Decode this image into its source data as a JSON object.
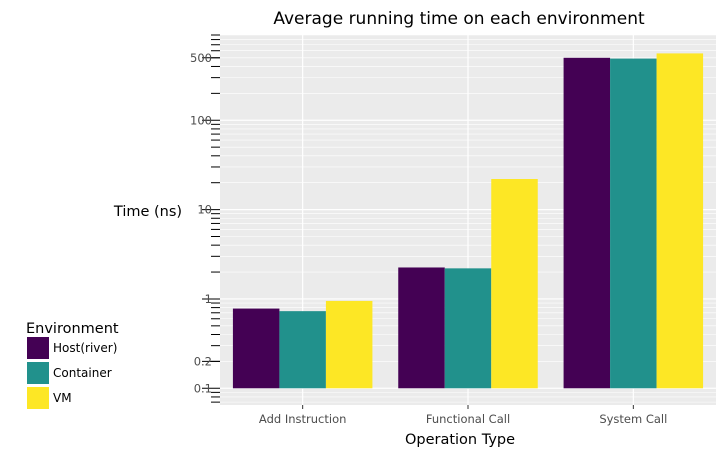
{
  "chart_data": {
    "type": "bar",
    "title": "Average running time on each environment",
    "xlabel": "Operation Type",
    "ylabel": "Time (ns)",
    "y_scale": "log",
    "ylim": [
      0.065,
      900
    ],
    "categories": [
      "Add Instruction",
      "Functional Call",
      "System Call"
    ],
    "series": [
      {
        "name": "Host(river)",
        "color": "#440154",
        "values": [
          0.78,
          2.25,
          500
        ]
      },
      {
        "name": "Container",
        "color": "#21918c",
        "values": [
          0.73,
          2.2,
          490
        ]
      },
      {
        "name": "VM",
        "color": "#fde725",
        "values": [
          0.95,
          22,
          560
        ]
      }
    ],
    "bar_base": 0.1,
    "y_tick_labels": [
      {
        "value": 0.1,
        "label": "0.1"
      },
      {
        "value": 0.2,
        "label": "0.2"
      },
      {
        "value": 1,
        "label": "1"
      },
      {
        "value": 10,
        "label": "10"
      },
      {
        "value": 100,
        "label": "100"
      },
      {
        "value": 500,
        "label": "500"
      }
    ],
    "legend": {
      "title": "Environment",
      "placement": "left"
    },
    "grid": true,
    "panel_background": "#ebebeb",
    "grid_color": "#ffffff"
  }
}
